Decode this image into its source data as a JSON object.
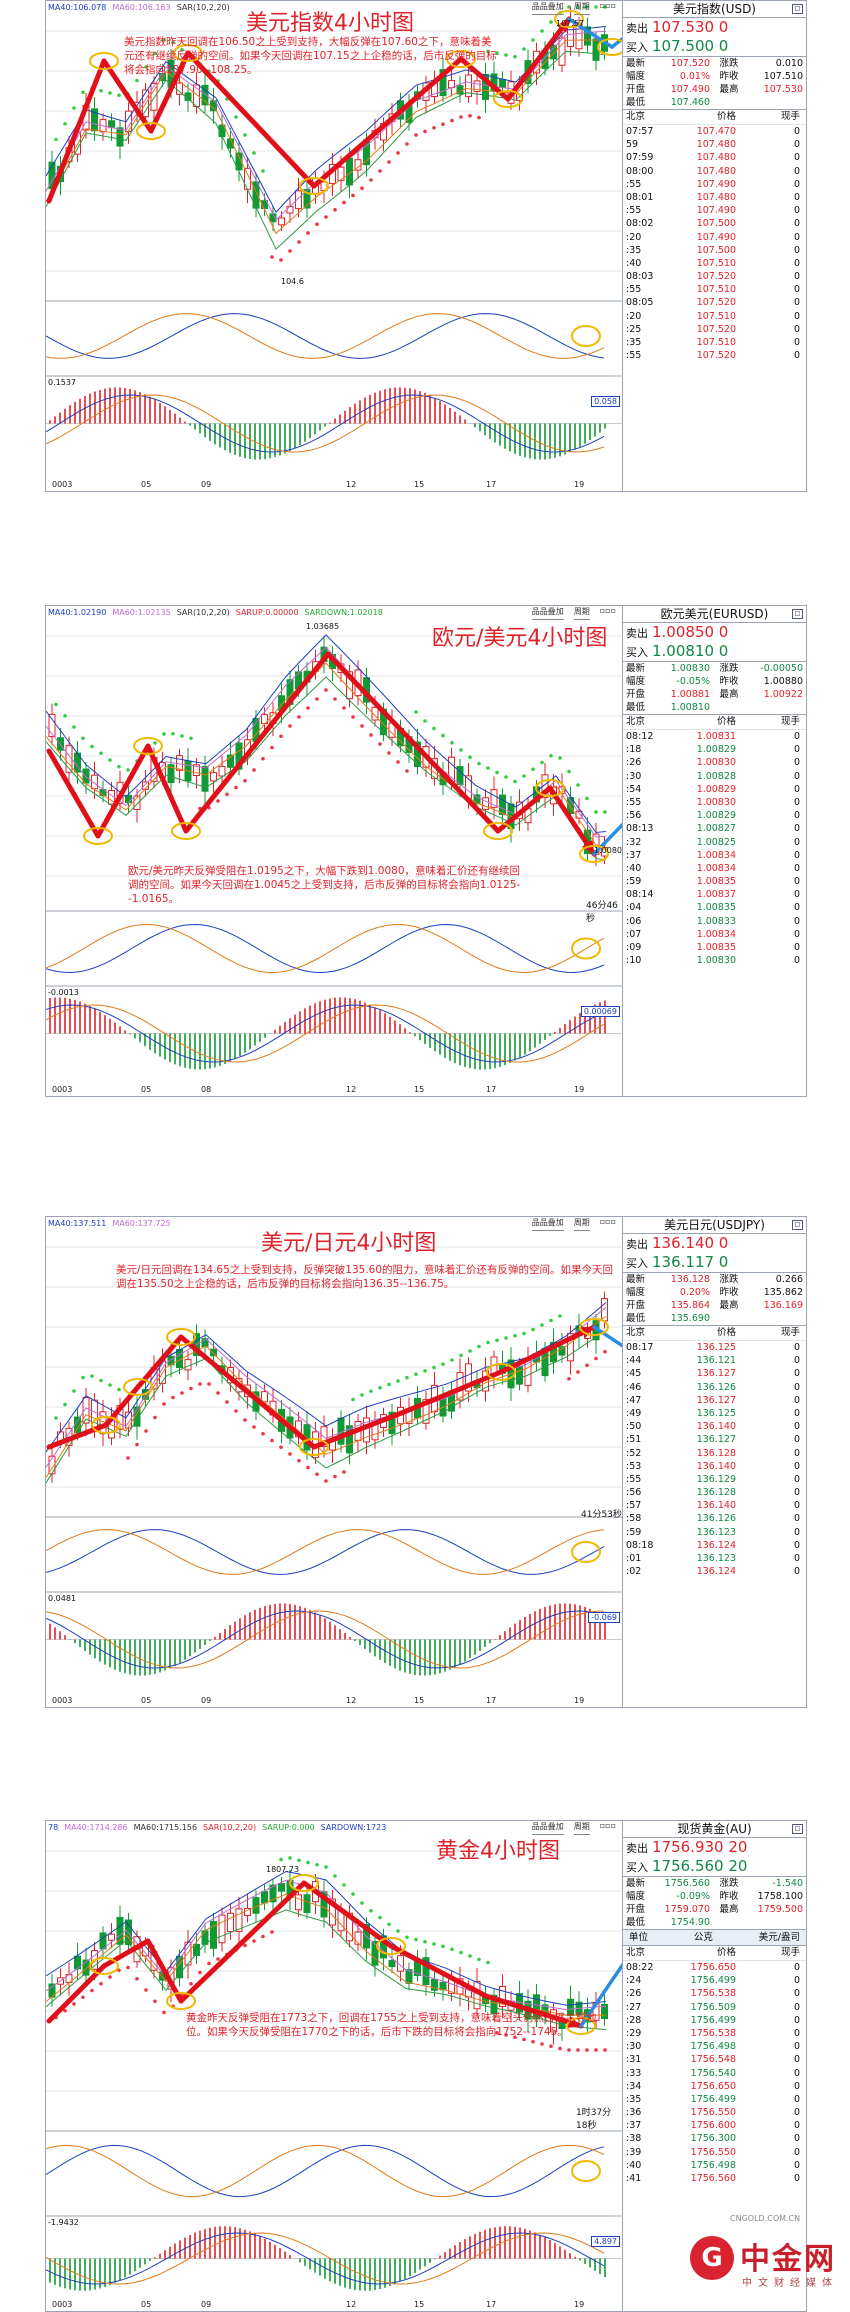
{
  "panels": [
    {
      "title": "美元指数4小时图",
      "indicators": [
        "MA40:106.078",
        "MA60:106.163",
        "SAR(10,2,20)"
      ],
      "note": "美元指数昨天回调在106.50之上受到支持，大幅反弹在107.60之下，意味着美元还有继续反弹的空间。如果今天回调在107.15之上企稳的话，后市反弹的目标将会指向107.90--108.25。",
      "price_labels": [
        "107.57",
        "104.6"
      ],
      "subval": "0.1537",
      "subval2": "0.058",
      "xlabels": [
        "0003",
        "05",
        "09",
        "12",
        "15",
        "17",
        "19"
      ],
      "toolbar": [
        "品品叠加",
        "周期"
      ],
      "quote": {
        "name": "美元指数(USD)",
        "sell_label": "卖出",
        "sell": "107.530 0",
        "buy_label": "买入",
        "buy": "107.500 0",
        "stats": [
          [
            "最新",
            "107.520",
            "涨跌",
            "0.010"
          ],
          [
            "幅度",
            "0.01%",
            "昨收",
            "107.510"
          ],
          [
            "开盘",
            "107.490",
            "最高",
            "107.530"
          ],
          [
            "最低",
            "107.460",
            "",
            ""
          ]
        ],
        "hdr": [
          "北京",
          "价格",
          "现手"
        ],
        "ticks": [
          [
            "07:57",
            "107.470",
            "0"
          ],
          [
            "59",
            "107.480",
            "0"
          ],
          [
            "07:59",
            "107.480",
            "0"
          ],
          [
            "08:00",
            "107.480",
            "0"
          ],
          [
            ":55",
            "107.490",
            "0"
          ],
          [
            "08:01",
            "107.480",
            "0"
          ],
          [
            ":55",
            "107.490",
            "0"
          ],
          [
            "08:02",
            "107.500",
            "0"
          ],
          [
            ":20",
            "107.490",
            "0"
          ],
          [
            ":35",
            "107.500",
            "0"
          ],
          [
            ":40",
            "107.510",
            "0"
          ],
          [
            "08:03",
            "107.520",
            "0"
          ],
          [
            ":55",
            "107.510",
            "0"
          ],
          [
            "08:05",
            "107.520",
            "0"
          ],
          [
            ":20",
            "107.510",
            "0"
          ],
          [
            ":25",
            "107.520",
            "0"
          ],
          [
            ":35",
            "107.510",
            "0"
          ],
          [
            ":55",
            "107.520",
            "0"
          ],
          [
            "08:06",
            "107.510",
            "0"
          ],
          [
            ":35",
            "107.520",
            "0"
          ]
        ],
        "extra": null
      },
      "countdown": ""
    },
    {
      "title": "欧元/美元4小时图",
      "indicators": [
        "MA40:1.02190",
        "MA60:1.02135",
        "SAR(10,2,20)",
        "SARUP:0.00000",
        "SARDOWN:1.02018"
      ],
      "note": "欧元/美元昨天反弹受阻在1.0195之下，大幅下跌到1.0080，意味着汇价还有继续回调的空间。如果今天回调在1.0045之上受到支持，后市反弹的目标将会指向1.0125--1.0165。",
      "price_labels": [
        "1.03685",
        "1.00802"
      ],
      "subval": "-0.0013",
      "subval2": "0.00069",
      "xlabels": [
        "0003",
        "05",
        "08",
        "12",
        "15",
        "17",
        "19"
      ],
      "toolbar": [
        "品品叠加",
        "周期"
      ],
      "quote": {
        "name": "欧元美元(EURUSD)",
        "sell_label": "卖出",
        "sell": "1.00850 0",
        "buy_label": "买入",
        "buy": "1.00810 0",
        "stats": [
          [
            "最新",
            "1.00830",
            "涨跌",
            "-0.00050"
          ],
          [
            "幅度",
            "-0.05%",
            "昨收",
            "1.00880"
          ],
          [
            "开盘",
            "1.00881",
            "最高",
            "1.00922"
          ],
          [
            "最低",
            "1.00810",
            "",
            ""
          ]
        ],
        "hdr": [
          "北京",
          "价格",
          "现手"
        ],
        "ticks": [
          [
            "08:12",
            "1.00831",
            "0"
          ],
          [
            ":18",
            "1.00829",
            "0"
          ],
          [
            ":26",
            "1.00830",
            "0"
          ],
          [
            ":30",
            "1.00828",
            "0"
          ],
          [
            ":54",
            "1.00829",
            "0"
          ],
          [
            ":55",
            "1.00830",
            "0"
          ],
          [
            ":56",
            "1.00829",
            "0"
          ],
          [
            "08:13",
            "1.00827",
            "0"
          ],
          [
            ":32",
            "1.00825",
            "0"
          ],
          [
            ":37",
            "1.00834",
            "0"
          ],
          [
            ":40",
            "1.00834",
            "0"
          ],
          [
            ":59",
            "1.00835",
            "0"
          ],
          [
            "08:14",
            "1.00837",
            "0"
          ],
          [
            ":04",
            "1.00835",
            "0"
          ],
          [
            ":06",
            "1.00833",
            "0"
          ],
          [
            ":07",
            "1.00834",
            "0"
          ],
          [
            ":09",
            "1.00835",
            "0"
          ],
          [
            ":10",
            "1.00830",
            "0"
          ],
          [
            ":11",
            "1.00832",
            "0"
          ],
          [
            ":12",
            "1.00830",
            "0"
          ]
        ],
        "extra": null
      },
      "countdown": "46分46秒"
    },
    {
      "title": "美元/日元4小时图",
      "indicators": [
        "MA40:137.511",
        "MA60:137.725"
      ],
      "note": "美元/日元回调在134.65之上受到支持，反弹突破135.60的阻力，意味着汇价还有反弹的空间。如果今天回调在135.50之上企稳的话，后市反弹的目标将会指向136.35--136.75。",
      "price_labels": [],
      "subval": "0.0481",
      "subval2": "-0.069",
      "xlabels": [
        "0003",
        "05",
        "09",
        "12",
        "15",
        "17",
        "19"
      ],
      "toolbar": [
        "品品叠加",
        "周期"
      ],
      "quote": {
        "name": "美元日元(USDJPY)",
        "sell_label": "卖出",
        "sell": "136.140 0",
        "buy_label": "买入",
        "buy": "136.117 0",
        "stats": [
          [
            "最新",
            "136.128",
            "涨跌",
            "0.266"
          ],
          [
            "幅度",
            "0.20%",
            "昨收",
            "135.862"
          ],
          [
            "开盘",
            "135.864",
            "最高",
            "136.169"
          ],
          [
            "最低",
            "135.690",
            "",
            ""
          ]
        ],
        "hdr": [
          "北京",
          "价格",
          "现手"
        ],
        "ticks": [
          [
            "08:17",
            "136.125",
            "0"
          ],
          [
            ":44",
            "136.121",
            "0"
          ],
          [
            ":45",
            "136.127",
            "0"
          ],
          [
            ":46",
            "136.126",
            "0"
          ],
          [
            ":47",
            "136.127",
            "0"
          ],
          [
            ":49",
            "136.125",
            "0"
          ],
          [
            ":50",
            "136.140",
            "0"
          ],
          [
            ":51",
            "136.127",
            "0"
          ],
          [
            ":52",
            "136.128",
            "0"
          ],
          [
            ":53",
            "136.140",
            "0"
          ],
          [
            ":55",
            "136.129",
            "0"
          ],
          [
            ":56",
            "136.128",
            "0"
          ],
          [
            ":57",
            "136.140",
            "0"
          ],
          [
            ":58",
            "136.126",
            "0"
          ],
          [
            ":59",
            "136.123",
            "0"
          ],
          [
            "08:18",
            "136.124",
            "0"
          ],
          [
            ":01",
            "136.123",
            "0"
          ],
          [
            ":02",
            "136.124",
            "0"
          ],
          [
            ":03",
            "136.127",
            "0"
          ],
          [
            ":05",
            "136.128",
            "0"
          ]
        ],
        "extra": null
      },
      "countdown": "41分53秒"
    },
    {
      "title": "黄金4小时图",
      "indicators": [
        "78",
        "MA40:1714.286",
        "MA60:1715.156",
        "SAR(10,2,20)",
        "SARUP:0.000",
        "SARDOWN:1723"
      ],
      "note": "黄金昨天反弹受阻在1773之下，回调在1755之上受到支持，意味着空头仍然占据主导地位。如果今天反弹受阻在1770之下的话，后市下跌的目标将会指向1752--1745。",
      "price_labels": [
        "1807.73"
      ],
      "subval": "-1.9432",
      "subval2": "4.897",
      "xlabels": [
        "0003",
        "05",
        "09",
        "12",
        "15",
        "17",
        "19"
      ],
      "toolbar": [
        "品品叠加",
        "周期"
      ],
      "quote": {
        "name": "现货黄金(AU)",
        "sell_label": "卖出",
        "sell": "1756.930 20",
        "buy_label": "买入",
        "buy": "1756.560 20",
        "stats": [
          [
            "最新",
            "1756.560",
            "涨跌",
            "-1.540"
          ],
          [
            "幅度",
            "-0.09%",
            "昨收",
            "1758.100"
          ],
          [
            "开盘",
            "1759.070",
            "最高",
            "1759.500"
          ],
          [
            "最低",
            "1754.90",
            "",
            ""
          ]
        ],
        "hdr": [
          "北京",
          "价格",
          "现手"
        ],
        "ticks": [
          [
            "08:22",
            "1756.650",
            "0"
          ],
          [
            ":24",
            "1756.499",
            "0"
          ],
          [
            ":26",
            "1756.538",
            "0"
          ],
          [
            ":27",
            "1756.509",
            "0"
          ],
          [
            ":28",
            "1756.499",
            "0"
          ],
          [
            ":29",
            "1756.538",
            "0"
          ],
          [
            ":30",
            "1756.498",
            "0"
          ],
          [
            ":31",
            "1756.548",
            "0"
          ],
          [
            ":33",
            "1756.540",
            "0"
          ],
          [
            ":34",
            "1756.650",
            "0"
          ],
          [
            ":35",
            "1756.499",
            "0"
          ],
          [
            ":36",
            "1756.550",
            "0"
          ],
          [
            ":37",
            "1756.600",
            "0"
          ],
          [
            ":38",
            "1756.300",
            "0"
          ],
          [
            ":39",
            "1756.550",
            "0"
          ],
          [
            ":40",
            "1756.498",
            "0"
          ],
          [
            ":41",
            "1756.560",
            "0"
          ],
          [
            ":42",
            "1756.560",
            "0"
          ],
          [
            ":43",
            "1756.560",
            "0"
          ],
          [
            ":44",
            "1756.560",
            "0"
          ]
        ],
        "extra": [
          "单位",
          "公克",
          "美元/盎司"
        ]
      },
      "countdown": "1时37分18秒"
    }
  ],
  "colors": {
    "up": "#e0222b",
    "down": "#119933",
    "accent": "#e0222b",
    "arrow_blue": "#2a8ee0",
    "highlight": "#f0b800"
  },
  "logo": {
    "name": "中金网",
    "sub": "中文财经媒体",
    "url": "CNGOLD.COM.CN",
    "glyph": "G"
  }
}
